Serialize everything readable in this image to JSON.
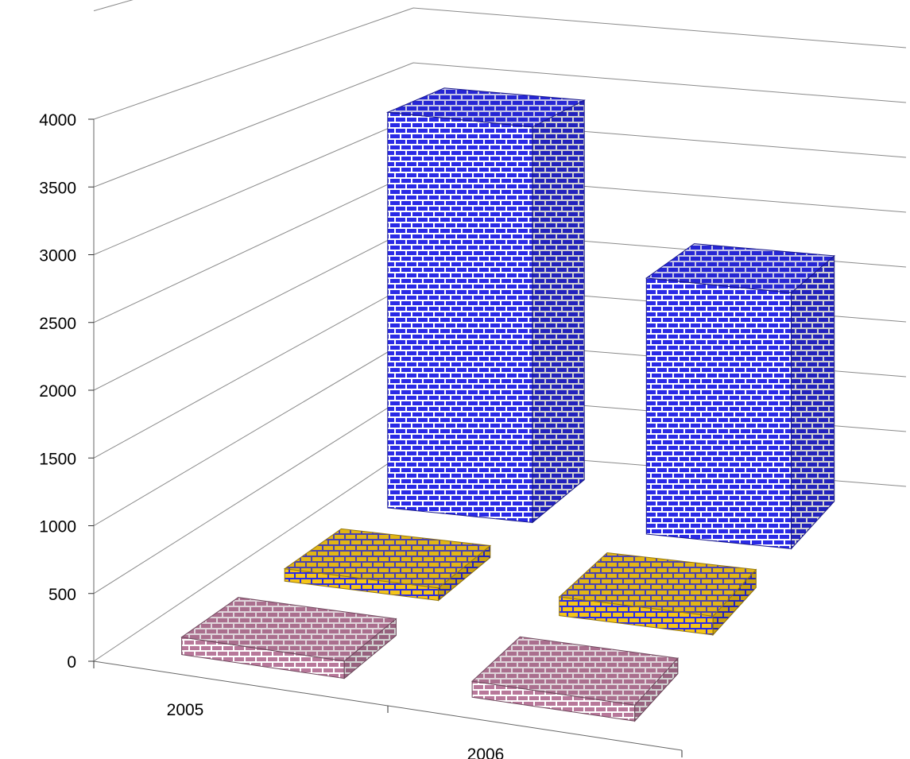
{
  "chart_data": {
    "type": "bar",
    "subtype": "3d-column",
    "categories": [
      "2005",
      "2006"
    ],
    "series": [
      {
        "values": [
          130,
          120
        ],
        "color": "#b8789a",
        "pattern": "brick"
      },
      {
        "values": [
          100,
          150
        ],
        "color": "#f5c518",
        "pattern": "brick"
      },
      {
        "values": [
          3400,
          2200
        ],
        "color": "#2a2ae6",
        "pattern": "brick"
      }
    ],
    "ylim": [
      0,
      4000
    ],
    "yticks": [
      "0",
      "500",
      "1000",
      "1500",
      "2000",
      "2500",
      "3000",
      "3500",
      "4000"
    ],
    "xlabel": "",
    "ylabel": "",
    "title": "",
    "grid": true,
    "legend": "none"
  }
}
